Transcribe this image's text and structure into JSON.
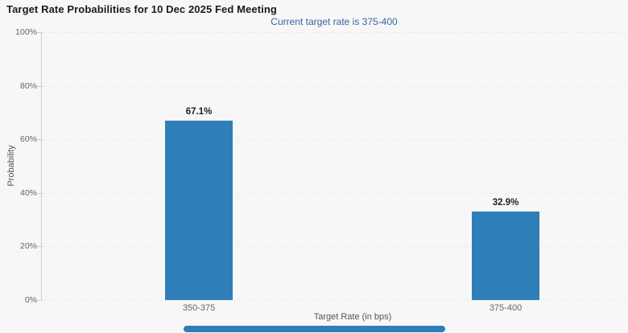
{
  "chart_data": {
    "type": "bar",
    "title": "Target Rate Probabilities for 10 Dec 2025 Fed Meeting",
    "subtitle": "Current target rate is 375-400",
    "categories": [
      "350-375",
      "375-400"
    ],
    "values": [
      67.1,
      32.9
    ],
    "value_labels": [
      "67.1%",
      "32.9%"
    ],
    "xlabel": "Target Rate (in bps)",
    "ylabel": "Probability",
    "ylim": [
      0,
      100
    ],
    "yticks": [
      0,
      20,
      40,
      60,
      80,
      100
    ],
    "ytick_labels": [
      "0%",
      "20%",
      "40%",
      "60%",
      "80%",
      "100%"
    ],
    "grid": "horizontal dotted lines",
    "legend": "none"
  },
  "colors": {
    "background": "#f7f7f7",
    "bar": "#2e7eb8",
    "subtitle_text": "#3963a7",
    "title_text": "#1a1a1a",
    "tick_text": "#666666",
    "axis_title_text": "#555555",
    "value_label_text": "#222222",
    "gridline": "#d9d9d9",
    "axis_line": "#cccccc",
    "scrollbar": "#2e7eb8"
  }
}
